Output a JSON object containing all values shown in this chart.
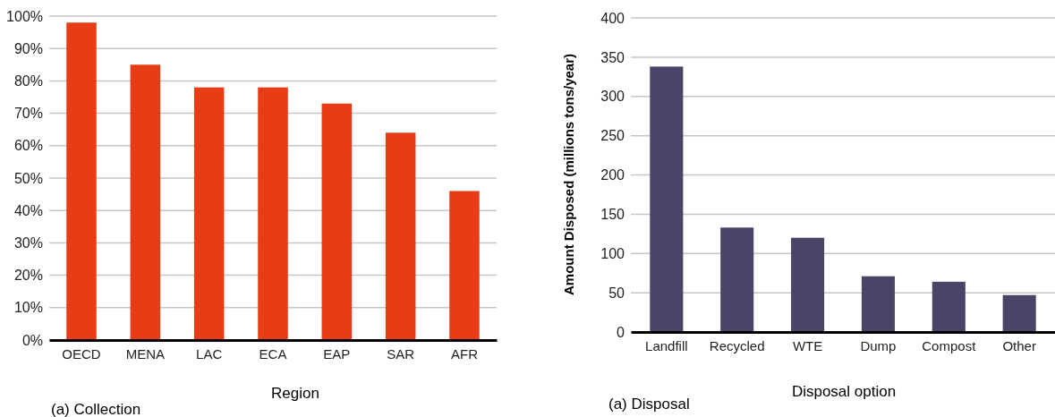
{
  "chart_data": [
    {
      "type": "bar",
      "xlabel": "Region",
      "categories": [
        "OECD",
        "MENA",
        "LAC",
        "ECA",
        "EAP",
        "SAR",
        "AFR"
      ],
      "values": [
        98,
        85,
        78,
        78,
        73,
        64,
        46
      ],
      "color": "#e83c16",
      "ylim": [
        0,
        100
      ],
      "yticks": [
        {
          "value": 0,
          "label": "0%"
        },
        {
          "value": 10,
          "label": "10%"
        },
        {
          "value": 20,
          "label": "20%"
        },
        {
          "value": 30,
          "label": "30%"
        },
        {
          "value": 40,
          "label": "40%"
        },
        {
          "value": 50,
          "label": "50%"
        },
        {
          "value": 60,
          "label": "60%"
        },
        {
          "value": 70,
          "label": "70%"
        },
        {
          "value": 80,
          "label": "80%"
        },
        {
          "value": 90,
          "label": "90%"
        },
        {
          "value": 100,
          "label": "100%"
        }
      ],
      "grid": "y",
      "annotations": [
        "(a) Collection"
      ]
    },
    {
      "type": "bar",
      "xlabel": "Disposal option",
      "ylabel": "Amount Disposed (millions tons/year)",
      "categories": [
        "Landfill",
        "Recycled",
        "WTE",
        "Dump",
        "Compost",
        "Other"
      ],
      "values": [
        338,
        133,
        120,
        71,
        64,
        47
      ],
      "color": "#4b4468",
      "ylim": [
        0,
        400
      ],
      "yticks": [
        0,
        50,
        100,
        150,
        200,
        250,
        300,
        350,
        400
      ],
      "grid": "y",
      "annotations": [
        "(a) Disposal"
      ]
    }
  ]
}
